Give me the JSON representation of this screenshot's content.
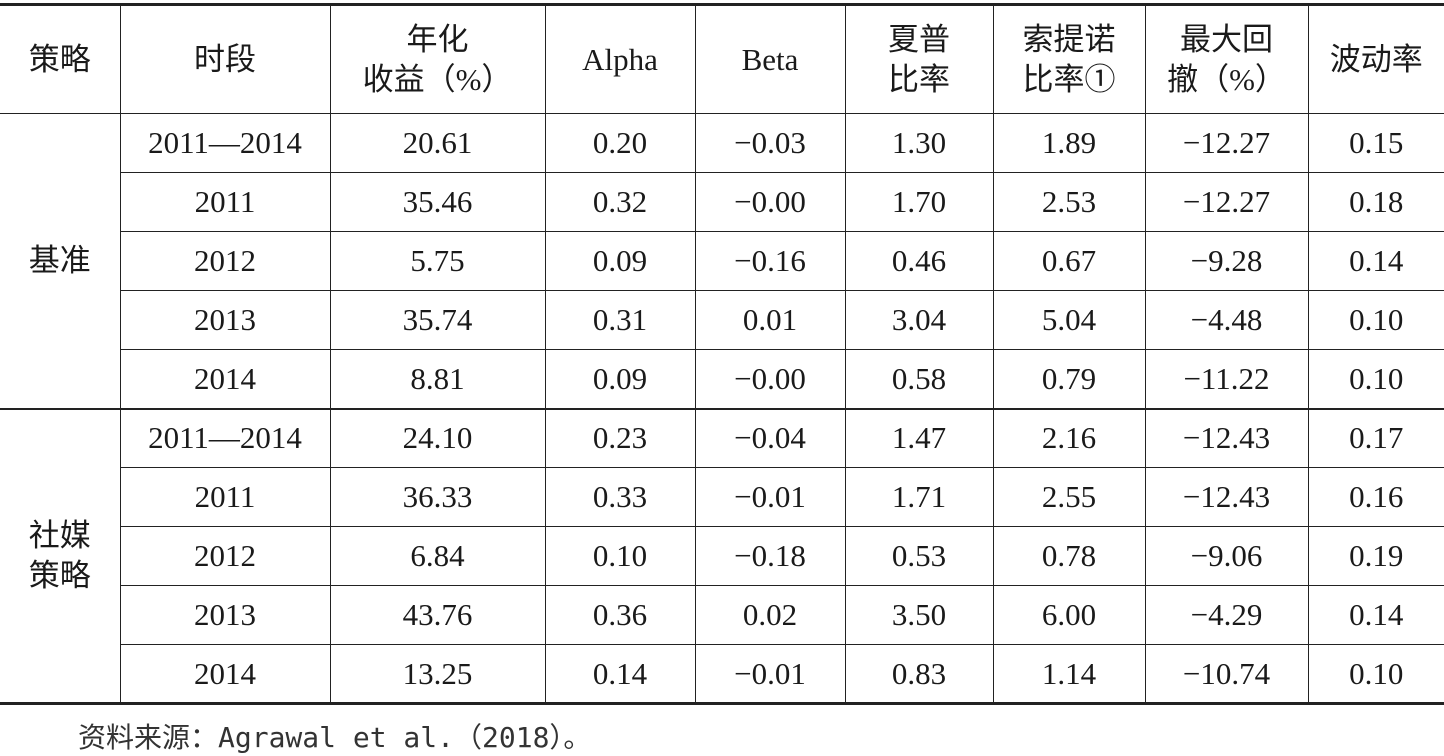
{
  "header": [
    "策略",
    "时段",
    "年化\n收益（%）",
    "Alpha",
    "Beta",
    "夏普\n比率",
    "索提诺\n比率①",
    "最大回\n撤（%）",
    "波动率"
  ],
  "groups": [
    {
      "label": "基准",
      "rows": [
        [
          "2011—2014",
          "20.61",
          "0.20",
          "−0.03",
          "1.30",
          "1.89",
          "−12.27",
          "0.15"
        ],
        [
          "2011",
          "35.46",
          "0.32",
          "−0.00",
          "1.70",
          "2.53",
          "−12.27",
          "0.18"
        ],
        [
          "2012",
          "5.75",
          "0.09",
          "−0.16",
          "0.46",
          "0.67",
          "−9.28",
          "0.14"
        ],
        [
          "2013",
          "35.74",
          "0.31",
          "0.01",
          "3.04",
          "5.04",
          "−4.48",
          "0.10"
        ],
        [
          "2014",
          "8.81",
          "0.09",
          "−0.00",
          "0.58",
          "0.79",
          "−11.22",
          "0.10"
        ]
      ]
    },
    {
      "label": "社媒\n策略",
      "rows": [
        [
          "2011—2014",
          "24.10",
          "0.23",
          "−0.04",
          "1.47",
          "2.16",
          "−12.43",
          "0.17"
        ],
        [
          "2011",
          "36.33",
          "0.33",
          "−0.01",
          "1.71",
          "2.55",
          "−12.43",
          "0.16"
        ],
        [
          "2012",
          "6.84",
          "0.10",
          "−0.18",
          "0.53",
          "0.78",
          "−9.06",
          "0.19"
        ],
        [
          "2013",
          "43.76",
          "0.36",
          "0.02",
          "3.50",
          "6.00",
          "−4.29",
          "0.14"
        ],
        [
          "2014",
          "13.25",
          "0.14",
          "−0.01",
          "0.83",
          "1.14",
          "−10.74",
          "0.10"
        ]
      ]
    }
  ],
  "footer": "资料来源：Agrawal et al.（2018）。"
}
